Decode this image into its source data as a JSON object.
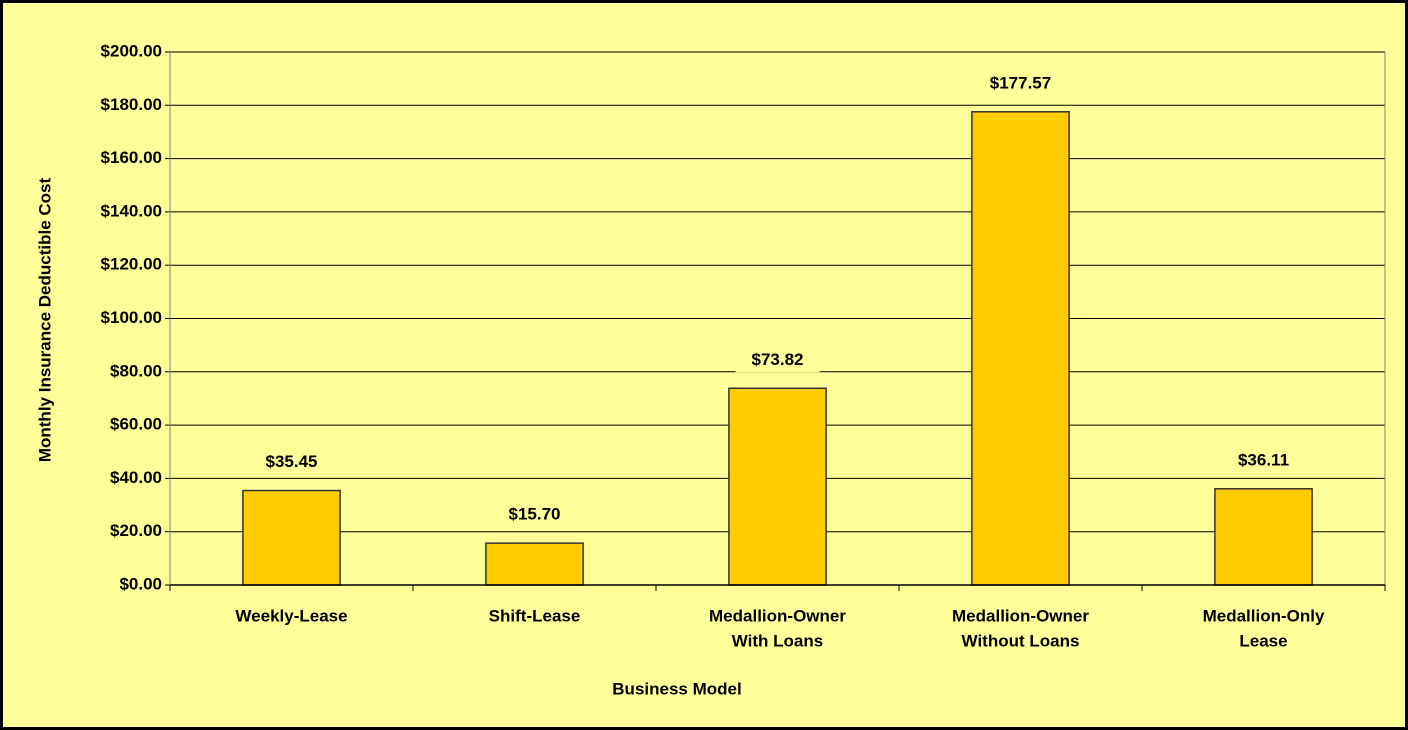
{
  "chart_data": {
    "type": "bar",
    "xlabel": "Business Model",
    "ylabel": "Monthly Insurance Deductible Cost",
    "categories": [
      [
        "Weekly-Lease"
      ],
      [
        "Shift-Lease"
      ],
      [
        "Medallion-Owner",
        "With Loans"
      ],
      [
        "Medallion-Owner",
        "Without Loans"
      ],
      [
        "Medallion-Only",
        "Lease"
      ]
    ],
    "values": [
      35.45,
      15.7,
      73.82,
      177.57,
      36.11
    ],
    "value_labels": [
      "$35.45",
      "$15.70",
      "$73.82",
      "$177.57",
      "$36.11"
    ],
    "color": "#FFCC00",
    "ylim": [
      0,
      200
    ],
    "yticks": [
      {
        "value": 0,
        "label": "$0.00"
      },
      {
        "value": 20,
        "label": "$20.00"
      },
      {
        "value": 40,
        "label": "$40.00"
      },
      {
        "value": 60,
        "label": "$60.00"
      },
      {
        "value": 80,
        "label": "$80.00"
      },
      {
        "value": 100,
        "label": "$100.00"
      },
      {
        "value": 120,
        "label": "$120.00"
      },
      {
        "value": 140,
        "label": "$140.00"
      },
      {
        "value": 160,
        "label": "$160.00"
      },
      {
        "value": 180,
        "label": "$180.00"
      },
      {
        "value": 200,
        "label": "$200.00"
      }
    ],
    "grid": true
  }
}
